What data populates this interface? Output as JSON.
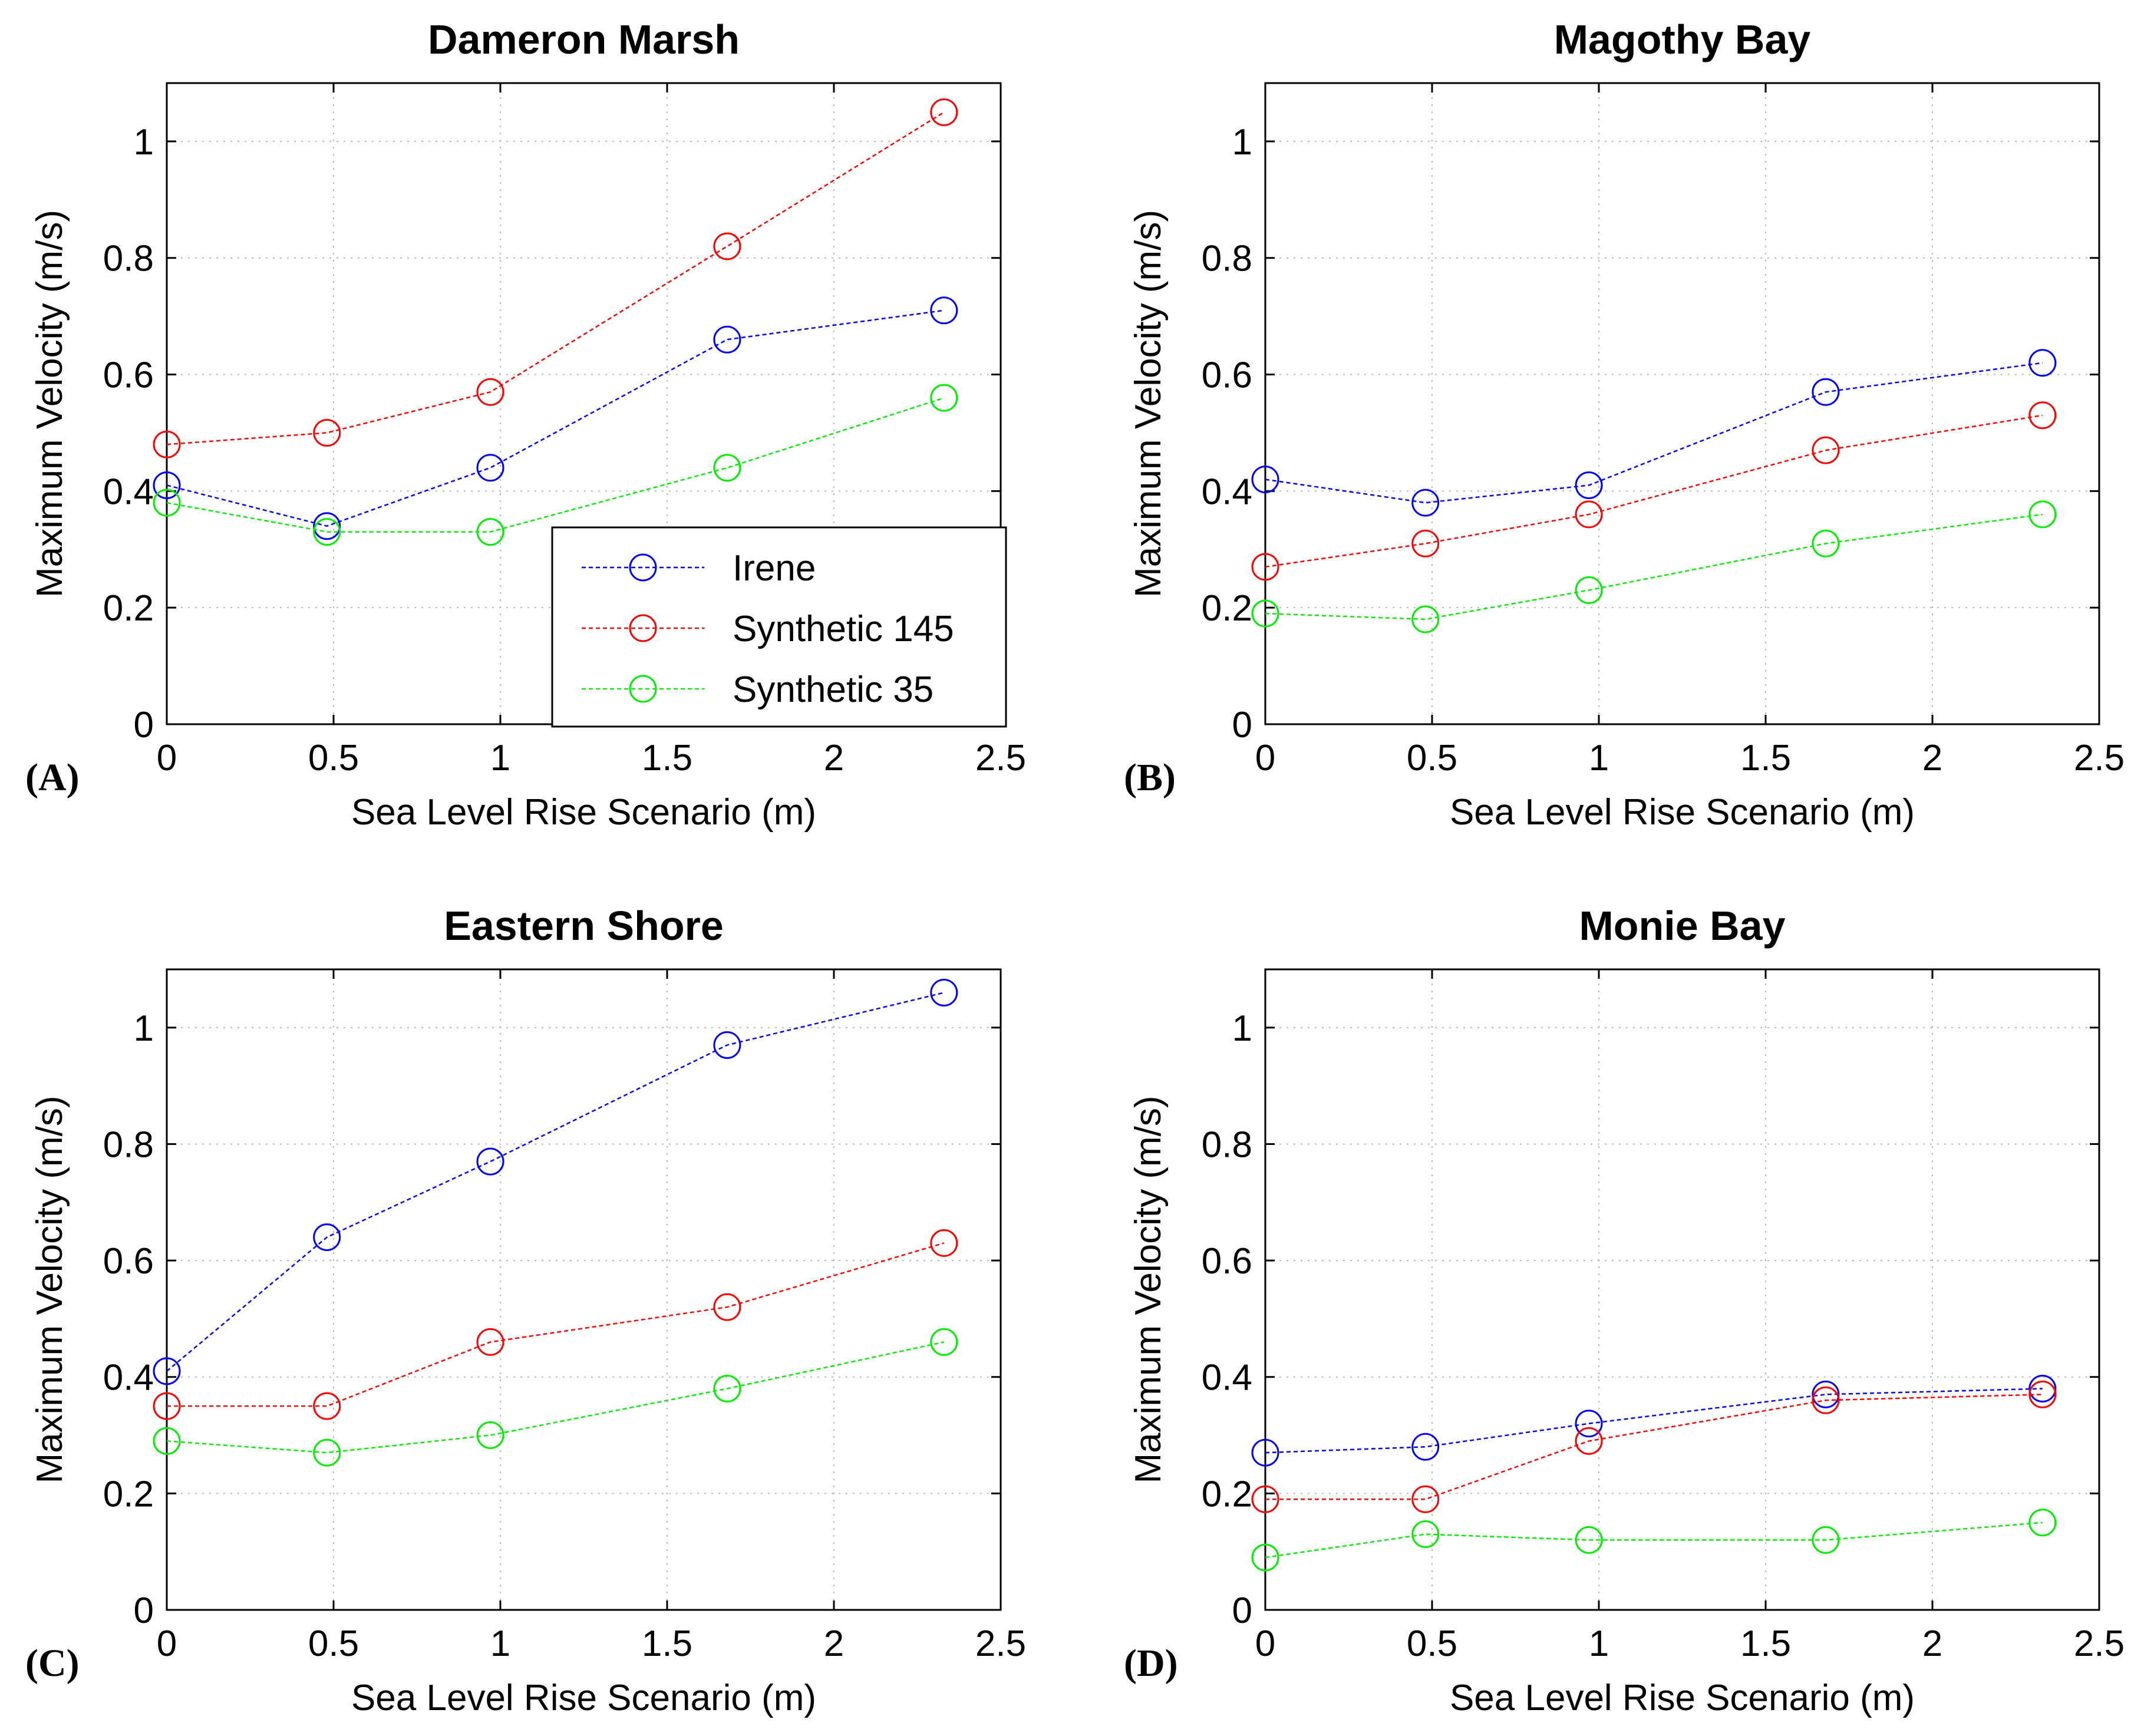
{
  "chart_data": [
    {
      "type": "line",
      "title": "Dameron Marsh",
      "panel_label": "(A)",
      "xlabel": "Sea Level Rise Scenario (m)",
      "ylabel": "Maximum Velocity (m/s)",
      "xlim": [
        0,
        2.5
      ],
      "ylim": [
        0,
        1.1
      ],
      "xticks": [
        "0",
        "0.5",
        "1",
        "1.5",
        "2",
        "2.5"
      ],
      "yticks": [
        "0",
        "0.2",
        "0.4",
        "0.6",
        "0.8",
        "1"
      ],
      "grid": true,
      "x": [
        0,
        0.48,
        0.97,
        1.68,
        2.33
      ],
      "series": [
        {
          "name": "Irene",
          "values": [
            0.41,
            0.34,
            0.44,
            0.66,
            0.71
          ]
        },
        {
          "name": "Synthetic 145",
          "values": [
            0.48,
            0.5,
            0.57,
            0.82,
            1.05
          ]
        },
        {
          "name": "Synthetic 35",
          "values": [
            0.38,
            0.33,
            0.33,
            0.44,
            0.56
          ]
        }
      ],
      "legend": {
        "position": "lower-right",
        "entries": [
          "Irene",
          "Synthetic 145",
          "Synthetic 35"
        ]
      }
    },
    {
      "type": "line",
      "title": "Magothy Bay",
      "panel_label": "(B)",
      "xlabel": "Sea Level Rise Scenario (m)",
      "ylabel": "Maximum Velocity (m/s)",
      "xlim": [
        0,
        2.5
      ],
      "ylim": [
        0,
        1.1
      ],
      "xticks": [
        "0",
        "0.5",
        "1",
        "1.5",
        "2",
        "2.5"
      ],
      "yticks": [
        "0",
        "0.2",
        "0.4",
        "0.6",
        "0.8",
        "1"
      ],
      "grid": true,
      "x": [
        0,
        0.48,
        0.97,
        1.68,
        2.33
      ],
      "series": [
        {
          "name": "Irene",
          "values": [
            0.42,
            0.38,
            0.41,
            0.57,
            0.62
          ]
        },
        {
          "name": "Synthetic 145",
          "values": [
            0.27,
            0.31,
            0.36,
            0.47,
            0.53
          ]
        },
        {
          "name": "Synthetic 35",
          "values": [
            0.19,
            0.18,
            0.23,
            0.31,
            0.36
          ]
        }
      ]
    },
    {
      "type": "line",
      "title": "Eastern Shore",
      "panel_label": "(C)",
      "xlabel": "Sea Level Rise Scenario (m)",
      "ylabel": "Maximum Velocity (m/s)",
      "xlim": [
        0,
        2.5
      ],
      "ylim": [
        0,
        1.1
      ],
      "xticks": [
        "0",
        "0.5",
        "1",
        "1.5",
        "2",
        "2.5"
      ],
      "yticks": [
        "0",
        "0.2",
        "0.4",
        "0.6",
        "0.8",
        "1"
      ],
      "grid": true,
      "x": [
        0,
        0.48,
        0.97,
        1.68,
        2.33
      ],
      "series": [
        {
          "name": "Irene",
          "values": [
            0.41,
            0.64,
            0.77,
            0.97,
            1.06
          ]
        },
        {
          "name": "Synthetic 145",
          "values": [
            0.35,
            0.35,
            0.46,
            0.52,
            0.63
          ]
        },
        {
          "name": "Synthetic 35",
          "values": [
            0.29,
            0.27,
            0.3,
            0.38,
            0.46
          ]
        }
      ]
    },
    {
      "type": "line",
      "title": "Monie Bay",
      "panel_label": "(D)",
      "xlabel": "Sea Level Rise Scenario (m)",
      "ylabel": "Maximum Velocity (m/s)",
      "xlim": [
        0,
        2.5
      ],
      "ylim": [
        0,
        1.1
      ],
      "xticks": [
        "0",
        "0.5",
        "1",
        "1.5",
        "2",
        "2.5"
      ],
      "yticks": [
        "0",
        "0.2",
        "0.4",
        "0.6",
        "0.8",
        "1"
      ],
      "grid": true,
      "x": [
        0,
        0.48,
        0.97,
        1.68,
        2.33
      ],
      "series": [
        {
          "name": "Irene",
          "values": [
            0.27,
            0.28,
            0.32,
            0.37,
            0.38
          ]
        },
        {
          "name": "Synthetic 145",
          "values": [
            0.19,
            0.19,
            0.29,
            0.36,
            0.37
          ]
        },
        {
          "name": "Synthetic 35",
          "values": [
            0.09,
            0.13,
            0.12,
            0.12,
            0.15
          ]
        }
      ]
    }
  ],
  "colors": {
    "Irene": "#0000ff",
    "Synthetic 145": "#ff0000",
    "Synthetic 35": "#00ee00"
  }
}
